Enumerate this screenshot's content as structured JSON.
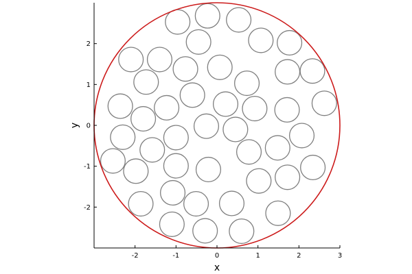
{
  "chart_data": {
    "type": "scatter",
    "title": "",
    "xlabel": "x",
    "ylabel": "y",
    "xlim": [
      -3,
      3
    ],
    "ylim": [
      -3,
      3
    ],
    "xticks": [
      -2,
      -1,
      0,
      1,
      2,
      3
    ],
    "yticks": [
      -2,
      -1,
      0,
      1,
      2
    ],
    "grid": false,
    "aspect": "equal",
    "boundary": {
      "cx": 0,
      "cy": 0,
      "r": 3,
      "color": "#cc1a1a"
    },
    "circle_radius": 0.3,
    "circle_color": "#7f7f7f",
    "circles": [
      {
        "x": -0.96,
        "y": 2.53
      },
      {
        "x": -0.23,
        "y": 2.68
      },
      {
        "x": 0.53,
        "y": 2.58
      },
      {
        "x": 1.07,
        "y": 2.08
      },
      {
        "x": 1.77,
        "y": 2.02
      },
      {
        "x": -0.45,
        "y": 2.04
      },
      {
        "x": -2.1,
        "y": 1.61
      },
      {
        "x": -1.4,
        "y": 1.61
      },
      {
        "x": -0.77,
        "y": 1.38
      },
      {
        "x": 0.07,
        "y": 1.42
      },
      {
        "x": 1.72,
        "y": 1.31
      },
      {
        "x": 2.33,
        "y": 1.33
      },
      {
        "x": -1.73,
        "y": 1.06
      },
      {
        "x": 0.73,
        "y": 1.03
      },
      {
        "x": -0.6,
        "y": 0.74
      },
      {
        "x": -2.36,
        "y": 0.47
      },
      {
        "x": -1.23,
        "y": 0.43
      },
      {
        "x": 0.21,
        "y": 0.52
      },
      {
        "x": 0.92,
        "y": 0.41
      },
      {
        "x": 1.71,
        "y": 0.38
      },
      {
        "x": 2.62,
        "y": 0.54
      },
      {
        "x": -1.8,
        "y": 0.16
      },
      {
        "x": -0.26,
        "y": -0.02
      },
      {
        "x": 0.45,
        "y": -0.1
      },
      {
        "x": -2.3,
        "y": -0.29
      },
      {
        "x": -1.0,
        "y": -0.3
      },
      {
        "x": 2.07,
        "y": -0.25
      },
      {
        "x": -1.58,
        "y": -0.6
      },
      {
        "x": 0.78,
        "y": -0.65
      },
      {
        "x": 1.48,
        "y": -0.55
      },
      {
        "x": -2.54,
        "y": -0.87
      },
      {
        "x": -1.98,
        "y": -1.12
      },
      {
        "x": -1.0,
        "y": -0.99
      },
      {
        "x": -0.21,
        "y": -1.08
      },
      {
        "x": 1.02,
        "y": -1.36
      },
      {
        "x": 1.72,
        "y": -1.27
      },
      {
        "x": 2.34,
        "y": -1.03
      },
      {
        "x": -1.08,
        "y": -1.65
      },
      {
        "x": -1.86,
        "y": -1.92
      },
      {
        "x": -0.51,
        "y": -1.92
      },
      {
        "x": 0.36,
        "y": -1.91
      },
      {
        "x": 1.49,
        "y": -2.15
      },
      {
        "x": -1.1,
        "y": -2.42
      },
      {
        "x": -0.29,
        "y": -2.58
      },
      {
        "x": 0.6,
        "y": -2.59
      }
    ]
  }
}
